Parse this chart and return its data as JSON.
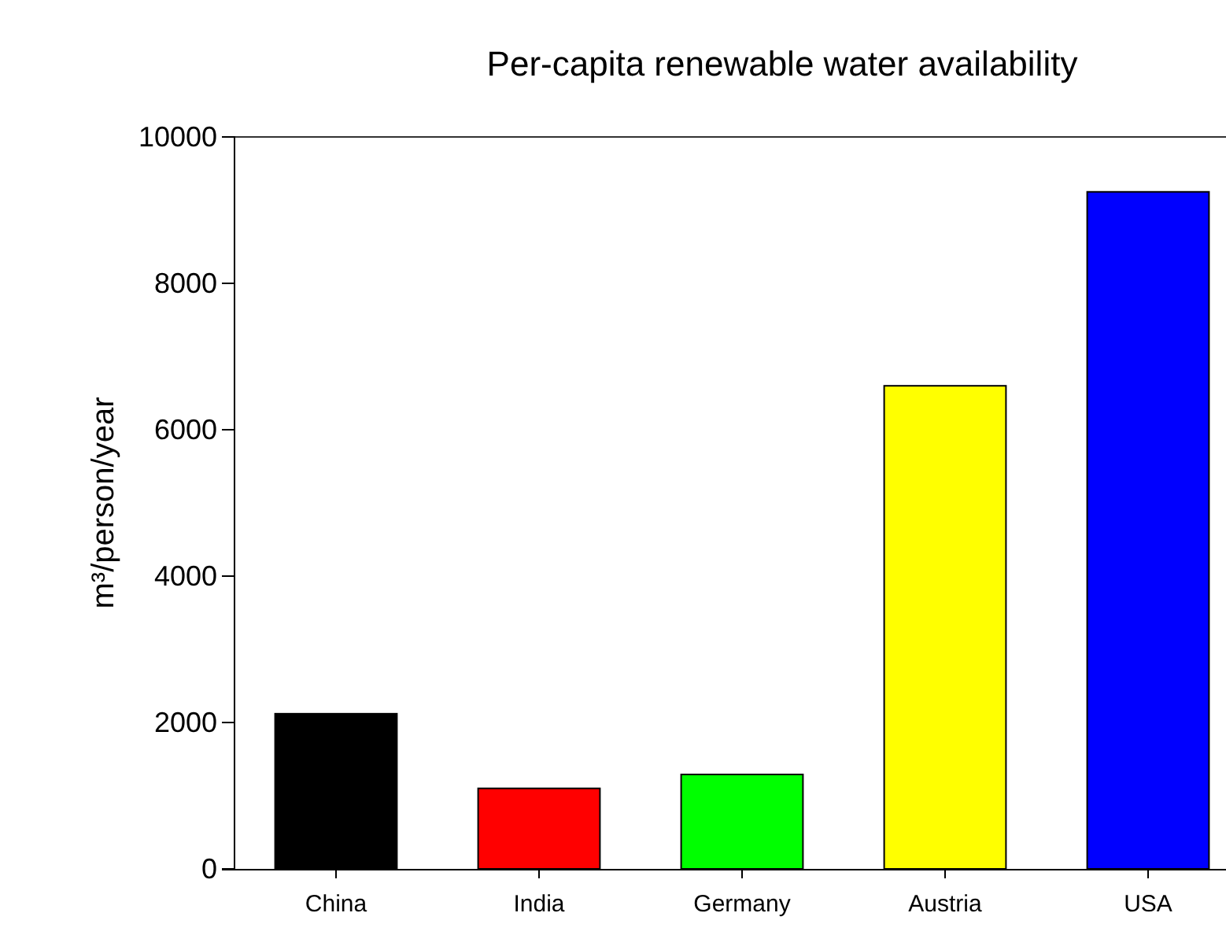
{
  "chart_data": {
    "type": "bar",
    "title": "Per-capita renewable water availability",
    "ylabel": "m³/person/year",
    "categories": [
      "China",
      "India",
      "Germany",
      "Austria",
      "USA"
    ],
    "values": [
      2120,
      1100,
      1290,
      6600,
      9250
    ],
    "colors": [
      "#000000",
      "#ff0000",
      "#00ff00",
      "#ffff00",
      "#0000ff"
    ],
    "ylim": [
      0,
      10000
    ],
    "yticks": [
      0,
      2000,
      4000,
      6000,
      8000,
      10000
    ],
    "grid": false
  }
}
